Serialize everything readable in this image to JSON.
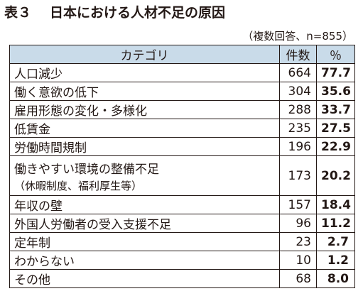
{
  "title": {
    "table_no": "表３",
    "text": "日本における人材不足の原因"
  },
  "note": "（複数回答、n=855）",
  "colors": {
    "header_bg": "#c9dbe9",
    "border": "#231815",
    "text": "#231815"
  },
  "table": {
    "headers": {
      "category": "カテゴリ",
      "count": "件数",
      "percent": "％"
    },
    "rows": [
      {
        "category": "人口減少",
        "count": "664",
        "percent": "77.7"
      },
      {
        "category": "働く意欲の低下",
        "count": "304",
        "percent": "35.6"
      },
      {
        "category": "雇用形態の変化・多様化",
        "count": "288",
        "percent": "33.7"
      },
      {
        "category": "低賃金",
        "count": "235",
        "percent": "27.5"
      },
      {
        "category": "労働時間規制",
        "count": "196",
        "percent": "22.9"
      },
      {
        "category": "働きやすい環境の整備不足",
        "sub": "（休暇制度、福利厚生等）",
        "count": "173",
        "percent": "20.2"
      },
      {
        "category": "年収の壁",
        "count": "157",
        "percent": "18.4"
      },
      {
        "category": "外国人労働者の受入支援不足",
        "count": "96",
        "percent": "11.2"
      },
      {
        "category": "定年制",
        "count": "23",
        "percent": "2.7"
      },
      {
        "category": "わからない",
        "count": "10",
        "percent": "1.2"
      },
      {
        "category": "その他",
        "count": "68",
        "percent": "8.0"
      }
    ]
  }
}
